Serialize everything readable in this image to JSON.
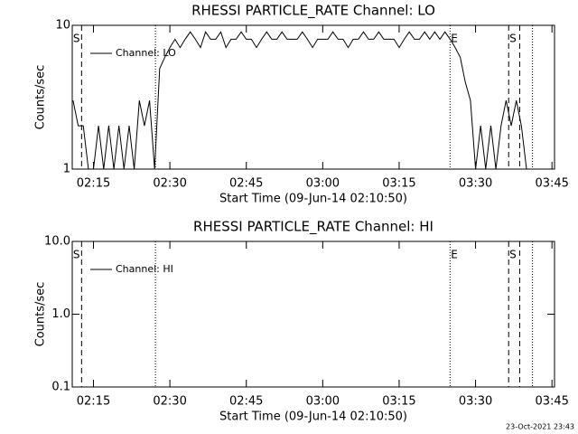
{
  "chart_data": [
    {
      "type": "line",
      "title": "RHESSI PARTICLE_RATE Channel: LO",
      "xlabel": "Start Time (09-Jun-14 02:10:50)",
      "ylabel": "Counts/sec",
      "log_y": true,
      "ylim": [
        1,
        10
      ],
      "yticks": [
        1,
        10
      ],
      "xlim": [
        "02:10:50",
        "03:45:30"
      ],
      "xticks": [
        "02:15",
        "02:30",
        "02:45",
        "03:00",
        "03:15",
        "03:30",
        "03:45"
      ],
      "legend": "upper left",
      "vlines": [
        {
          "x": "02:12:40",
          "style": "dashed"
        },
        {
          "x": "02:27:10",
          "style": "dotted"
        },
        {
          "x": "03:25:00",
          "style": "dotted"
        },
        {
          "x": "03:36:30",
          "style": "dashed"
        },
        {
          "x": "03:38:40",
          "style": "dashed"
        },
        {
          "x": "03:41:10",
          "style": "dotted"
        }
      ],
      "annotations": [
        {
          "text": "S",
          "x": "02:11:40"
        },
        {
          "text": "E",
          "x": "03:25:50"
        },
        {
          "text": "S",
          "x": "03:37:20"
        }
      ],
      "series": [
        {
          "name": "Channel: LO",
          "color": "#000000",
          "x": [
            "02:11",
            "02:12",
            "02:13",
            "02:14",
            "02:15",
            "02:16",
            "02:17",
            "02:18",
            "02:19",
            "02:20",
            "02:21",
            "02:22",
            "02:23",
            "02:24",
            "02:25",
            "02:26",
            "02:27",
            "02:28",
            "02:29",
            "02:30",
            "02:31",
            "02:32",
            "02:33",
            "02:34",
            "02:35",
            "02:36",
            "02:37",
            "02:38",
            "02:39",
            "02:40",
            "02:41",
            "02:42",
            "02:43",
            "02:44",
            "02:45",
            "02:46",
            "02:47",
            "02:48",
            "02:49",
            "02:50",
            "02:51",
            "02:52",
            "02:53",
            "02:54",
            "02:55",
            "02:56",
            "02:57",
            "02:58",
            "02:59",
            "03:00",
            "03:01",
            "03:02",
            "03:03",
            "03:04",
            "03:05",
            "03:06",
            "03:07",
            "03:08",
            "03:09",
            "03:10",
            "03:11",
            "03:12",
            "03:13",
            "03:14",
            "03:15",
            "03:16",
            "03:17",
            "03:18",
            "03:19",
            "03:20",
            "03:21",
            "03:22",
            "03:23",
            "03:24",
            "03:25",
            "03:26",
            "03:27",
            "03:28",
            "03:29",
            "03:30",
            "03:31",
            "03:32",
            "03:33",
            "03:34",
            "03:35",
            "03:36",
            "03:37",
            "03:38",
            "03:39",
            "03:40",
            "03:41"
          ],
          "values": [
            3,
            2,
            2,
            1,
            1,
            2,
            1,
            2,
            1,
            2,
            1,
            2,
            1,
            3,
            2,
            3,
            1,
            5,
            6,
            7,
            8,
            7,
            8,
            9,
            8,
            7,
            9,
            8,
            8,
            9,
            7,
            8,
            8,
            9,
            8,
            8,
            7,
            8,
            9,
            8,
            8,
            9,
            8,
            8,
            8,
            9,
            8,
            7,
            8,
            8,
            8,
            9,
            8,
            8,
            7,
            8,
            8,
            9,
            8,
            8,
            9,
            8,
            8,
            8,
            7,
            8,
            9,
            8,
            8,
            9,
            8,
            9,
            8,
            9,
            8,
            7,
            6,
            4,
            3,
            1,
            2,
            1,
            2,
            1,
            2,
            3,
            2,
            3,
            2,
            1,
            1
          ]
        }
      ]
    },
    {
      "type": "line",
      "title": "RHESSI PARTICLE_RATE Channel: HI",
      "xlabel": "Start Time (09-Jun-14 02:10:50)",
      "ylabel": "Counts/sec",
      "log_y": true,
      "ylim": [
        0.1,
        10
      ],
      "yticks": [
        0.1,
        {
          "value": 1,
          "label": "1.0"
        },
        {
          "value": 10,
          "label": "10.0"
        }
      ],
      "xlim": [
        "02:10:50",
        "03:45:30"
      ],
      "xticks": [
        "02:15",
        "02:30",
        "02:45",
        "03:00",
        "03:15",
        "03:30",
        "03:45"
      ],
      "legend": "upper left",
      "vlines": [
        {
          "x": "02:12:40",
          "style": "dashed"
        },
        {
          "x": "02:27:10",
          "style": "dotted"
        },
        {
          "x": "03:25:00",
          "style": "dotted"
        },
        {
          "x": "03:36:30",
          "style": "dashed"
        },
        {
          "x": "03:38:40",
          "style": "dashed"
        },
        {
          "x": "03:41:10",
          "style": "dotted"
        }
      ],
      "annotations": [
        {
          "text": "S",
          "x": "02:11:40"
        },
        {
          "text": "E",
          "x": "03:25:50"
        },
        {
          "text": "S",
          "x": "03:37:20"
        }
      ],
      "series": [
        {
          "name": "Channel: HI",
          "color": "#000000",
          "x": [],
          "values": []
        }
      ]
    }
  ],
  "footer": "23-Oct-2021 23:43"
}
